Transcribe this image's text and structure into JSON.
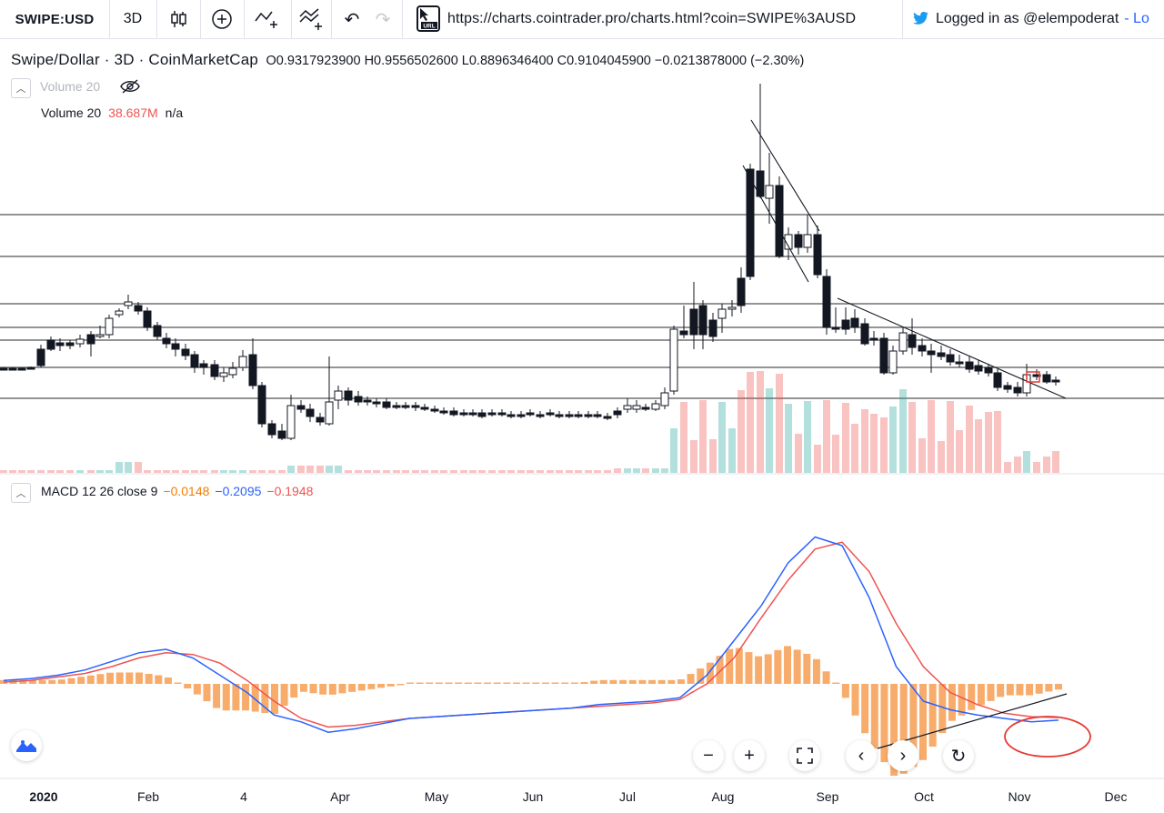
{
  "toolbar": {
    "symbol": "SWIPE:USD",
    "interval": "3D",
    "url": "https://charts.cointrader.pro/charts.html?coin=SWIPE%3AUSD",
    "url_badge": "URL",
    "login_text": "Logged in as @elempoderat",
    "login_link": "- Lo",
    "icons": [
      "candles-icon",
      "add-indicator-icon",
      "compare-icon",
      "indicators-icon",
      "undo-icon",
      "redo-icon",
      "url-icon",
      "twitter-icon"
    ]
  },
  "legend": {
    "title": "Swipe/Dollar · 3D · CoinMarketCap",
    "ohlc": "O0.9317923900  H0.9556502600  L0.8896346400  C0.9104045900  −0.0213878000 (−2.30%)"
  },
  "volume": {
    "label": "Volume 20",
    "name": "Volume 20",
    "value": "38.687M",
    "na": "n/a"
  },
  "macd": {
    "label": "MACD 12 26 close 9",
    "hist": "−0.0148",
    "macd_val": "−0.2095",
    "signal_val": "−0.1948"
  },
  "xaxis": [
    "2020",
    "Feb",
    "4",
    "Apr",
    "May",
    "Jun",
    "Jul",
    "Aug",
    "Sep",
    "Oct",
    "Nov",
    "Dec"
  ],
  "colors": {
    "up": "#26a69a",
    "down": "#ef5350",
    "macd_line": "#2962ff",
    "signal_line": "#ef5350",
    "histogram": "#f7a35c",
    "annotation": "#e53935"
  },
  "chart_data": {
    "type": "candlestick",
    "series": [
      {
        "name": "Swipe/Dollar"
      }
    ],
    "horizontal_levels": 7,
    "macd": {
      "macd_line": [
        0.02,
        0.03,
        0.05,
        0.08,
        0.13,
        0.18,
        0.2,
        0.15,
        0.05,
        -0.05,
        -0.18,
        -0.22,
        -0.28,
        -0.26,
        -0.23,
        -0.2,
        -0.19,
        -0.18,
        -0.17,
        -0.16,
        -0.15,
        -0.14,
        -0.12,
        -0.11,
        -0.1,
        -0.08,
        0.05,
        0.25,
        0.45,
        0.7,
        0.85,
        0.8,
        0.5,
        0.1,
        -0.1,
        -0.15,
        -0.18,
        -0.2,
        -0.22,
        -0.21
      ],
      "signal_line": [
        0.01,
        0.02,
        0.04,
        0.06,
        0.1,
        0.15,
        0.18,
        0.17,
        0.12,
        0.02,
        -0.1,
        -0.2,
        -0.25,
        -0.24,
        -0.22,
        -0.2,
        -0.19,
        -0.18,
        -0.17,
        -0.16,
        -0.15,
        -0.14,
        -0.13,
        -0.12,
        -0.11,
        -0.09,
        0.0,
        0.15,
        0.38,
        0.6,
        0.78,
        0.82,
        0.65,
        0.35,
        0.1,
        -0.05,
        -0.12,
        -0.17,
        -0.19,
        -0.195
      ]
    }
  }
}
